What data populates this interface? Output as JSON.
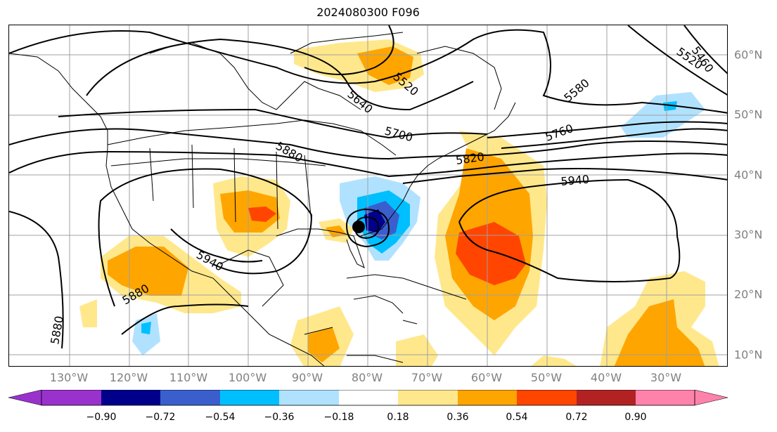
{
  "title": "2024080300 F096",
  "longitude_labels": [
    "130°W",
    "120°W",
    "110°W",
    "100°W",
    "90°W",
    "80°W",
    "70°W",
    "60°W",
    "50°W",
    "40°W",
    "30°W"
  ],
  "latitude_labels": [
    "60°N",
    "50°N",
    "40°N",
    "30°N",
    "20°N",
    "10°N"
  ],
  "contour_labels": [
    "5460",
    "5520",
    "5520",
    "5580",
    "5640",
    "5700",
    "5760",
    "5820",
    "5880",
    "5880",
    "5880",
    "5940",
    "5940"
  ],
  "colorbar": {
    "tick_labels": [
      "−0.90",
      "−0.72",
      "−0.54",
      "−0.36",
      "−0.18",
      "0.18",
      "0.36",
      "0.54",
      "0.72",
      "0.90"
    ],
    "colors": [
      "#9932cc",
      "#00008b",
      "#3a5fcd",
      "#00bfff",
      "#b0e2ff",
      "#ffffff",
      "#ffe88c",
      "#ffa500",
      "#ff4500",
      "#b22222",
      "#ff82ab"
    ]
  },
  "colors": {
    "land_outline": "#000000",
    "grid": "#a0a0a0",
    "contour": "#000000",
    "storm_marker": "#000000"
  }
}
